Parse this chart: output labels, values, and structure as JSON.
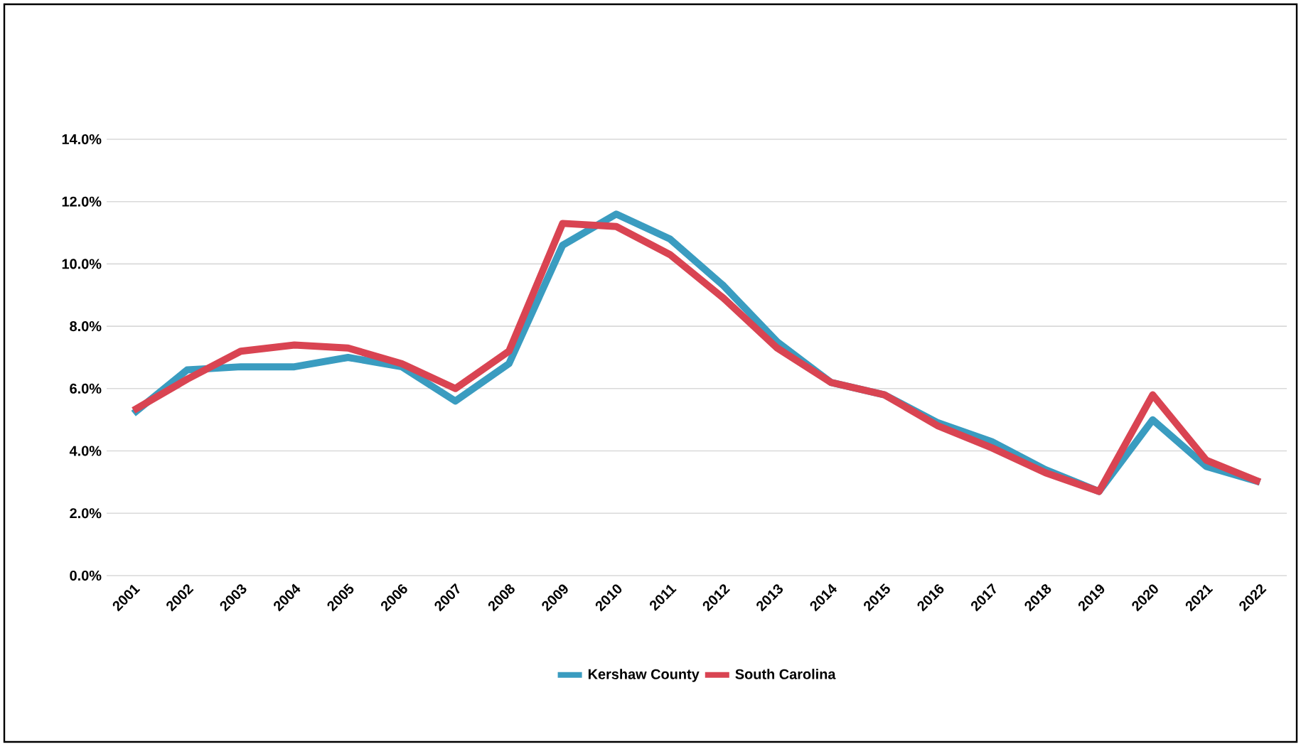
{
  "chart_data": {
    "type": "line",
    "categories": [
      "2001",
      "2002",
      "2003",
      "2004",
      "2005",
      "2006",
      "2007",
      "2008",
      "2009",
      "2010",
      "2011",
      "2012",
      "2013",
      "2014",
      "2015",
      "2016",
      "2017",
      "2018",
      "2019",
      "2020",
      "2021",
      "2022"
    ],
    "series": [
      {
        "name": "Kershaw County",
        "color": "#3a9cc0",
        "values": [
          5.2,
          6.6,
          6.7,
          6.7,
          7.0,
          6.7,
          5.6,
          6.8,
          10.6,
          11.6,
          10.8,
          9.3,
          7.5,
          6.2,
          5.8,
          4.9,
          4.3,
          3.4,
          2.7,
          5.0,
          3.5,
          3.0
        ]
      },
      {
        "name": "South Carolina",
        "color": "#d94452",
        "values": [
          5.3,
          6.3,
          7.2,
          7.4,
          7.3,
          6.8,
          6.0,
          7.2,
          11.3,
          11.2,
          10.3,
          8.9,
          7.3,
          6.2,
          5.8,
          4.8,
          4.1,
          3.3,
          2.7,
          5.8,
          3.7,
          3.0
        ]
      }
    ],
    "ylim": [
      0,
      14
    ],
    "yticks": [
      {
        "value": 0,
        "label": "0.0%"
      },
      {
        "value": 2,
        "label": "2.0%"
      },
      {
        "value": 4,
        "label": "4.0%"
      },
      {
        "value": 6,
        "label": "6.0%"
      },
      {
        "value": 8,
        "label": "8.0%"
      },
      {
        "value": 10,
        "label": "10.0%"
      },
      {
        "value": 12,
        "label": "12.0%"
      },
      {
        "value": 14,
        "label": "14.0%"
      }
    ],
    "grid": "y",
    "legend": "bottom",
    "marker": "none",
    "line_style": "solid"
  }
}
